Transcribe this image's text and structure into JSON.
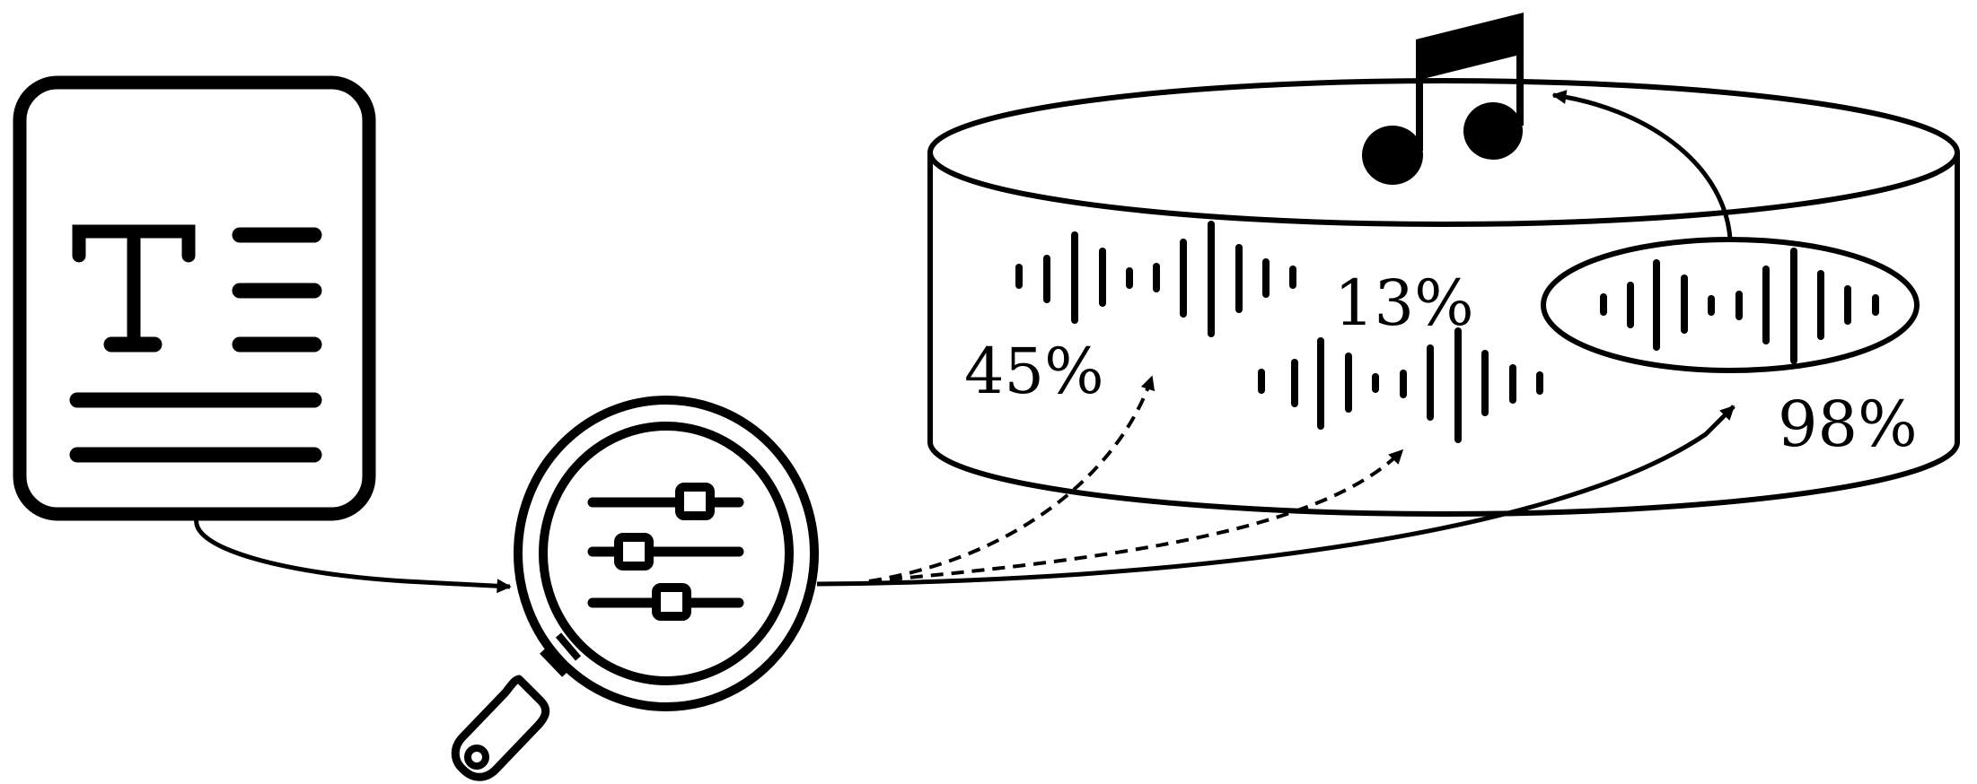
{
  "colors": {
    "stroke": "#000000",
    "background": "#ffffff"
  },
  "icons": {
    "document": "text-document-icon",
    "search": "magnifier-with-sliders-icon",
    "database": "audio-database-cylinder",
    "music": "music-note-icon"
  },
  "scores": {
    "left": "45%",
    "middle": "13%",
    "right": "98%"
  },
  "arrows": {
    "dashed_targets": [
      "left",
      "middle"
    ],
    "solid_target": "right",
    "highlighted": "right"
  }
}
